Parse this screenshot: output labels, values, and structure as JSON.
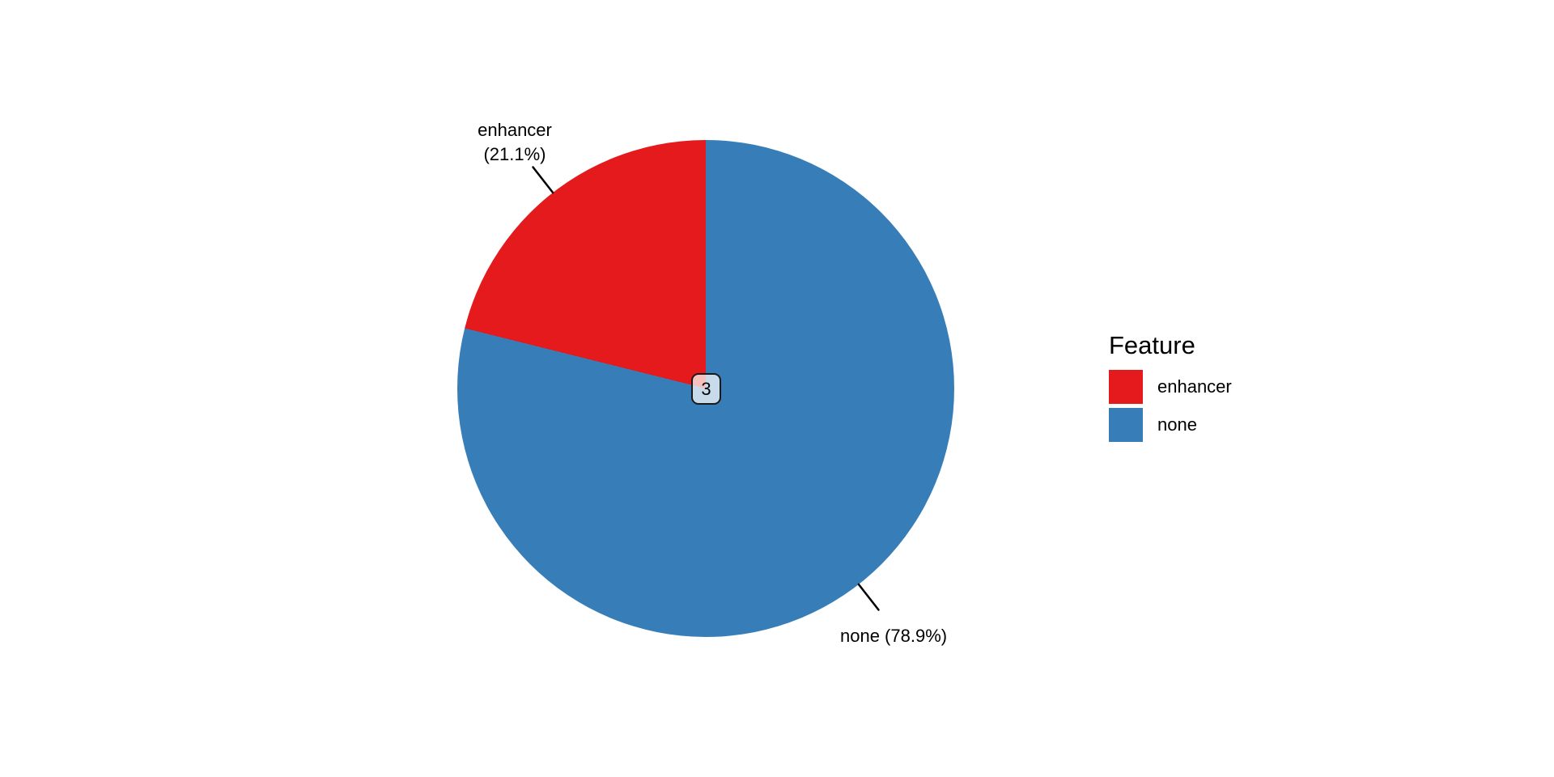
{
  "chart_data": {
    "type": "pie",
    "center_label": "3",
    "start_angle_deg": 0,
    "direction": "clockwise-from-top",
    "slices": [
      {
        "name": "enhancer",
        "percent": 21.1,
        "color": "#E41A1C",
        "callout_line1": "enhancer",
        "callout_line2": "(21.1%)"
      },
      {
        "name": "none",
        "percent": 78.9,
        "color": "#377EB8",
        "callout": "none (78.9%)"
      }
    ],
    "legend": {
      "title": "Feature",
      "position": "right",
      "entries": [
        {
          "label": "enhancer",
          "color": "#E41A1C"
        },
        {
          "label": "none",
          "color": "#377EB8"
        }
      ]
    },
    "background_color": "#FFFFFF",
    "text_color": "#000000",
    "leader_line_color": "#000000"
  }
}
